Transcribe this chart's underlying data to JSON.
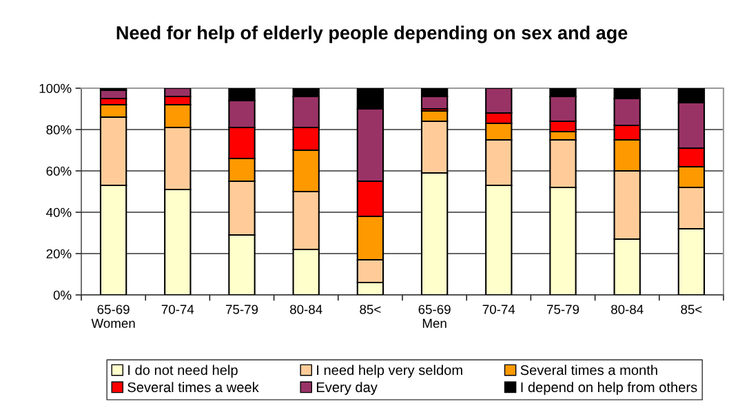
{
  "chart_data": {
    "type": "bar",
    "title": "Need for help of elderly people depending on sex and age",
    "categories": [
      "65-69\nWomen",
      "70-74",
      "75-79",
      "80-84",
      "85<",
      "65-69\nMen",
      "70-74",
      "75-79",
      "80-84",
      "85<"
    ],
    "stacked": true,
    "series": [
      {
        "name": "I do not need help",
        "color": "#ffffcc",
        "values": [
          53,
          51,
          29,
          22,
          6,
          59,
          53,
          52,
          27,
          32
        ]
      },
      {
        "name": "I need help very seldom",
        "color": "#ffcc99",
        "values": [
          33,
          30,
          26,
          28,
          11,
          25,
          22,
          23,
          33,
          20
        ]
      },
      {
        "name": "Several times a month",
        "color": "#ff9900",
        "values": [
          6,
          11,
          11,
          20,
          21,
          5,
          8,
          4,
          15,
          10
        ]
      },
      {
        "name": "Several times a week",
        "color": "#ff0000",
        "values": [
          3,
          4,
          15,
          11,
          17,
          1,
          5,
          5,
          7,
          9
        ]
      },
      {
        "name": "Every day",
        "color": "#993366",
        "values": [
          4,
          4,
          13,
          15,
          35,
          6,
          12,
          12,
          13,
          22
        ]
      },
      {
        "name": "I depend on help from others",
        "color": "#000000",
        "values": [
          1,
          0,
          6,
          4,
          10,
          4,
          0,
          4,
          5,
          7
        ]
      }
    ],
    "ylim": [
      0,
      100
    ],
    "yticks": [
      {
        "value": 0,
        "label": "0%"
      },
      {
        "value": 20,
        "label": "20%"
      },
      {
        "value": 40,
        "label": "40%"
      },
      {
        "value": 60,
        "label": "60%"
      },
      {
        "value": 80,
        "label": "80%"
      },
      {
        "value": 100,
        "label": "100%"
      }
    ],
    "grid": "y",
    "legend": "bottom"
  }
}
